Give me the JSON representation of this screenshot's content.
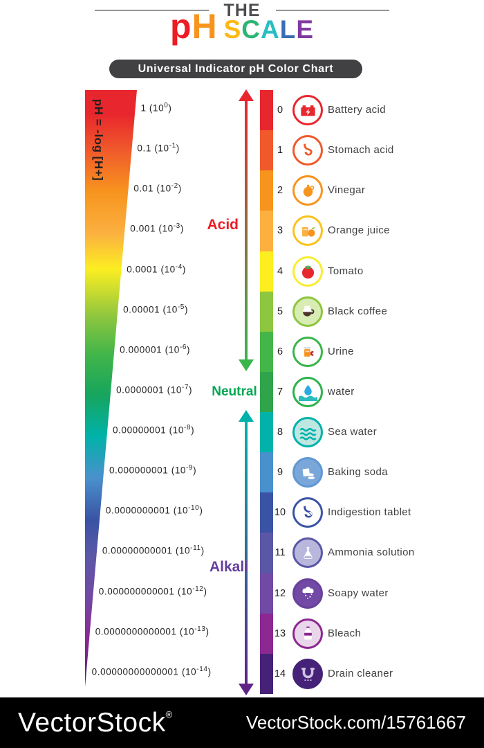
{
  "header": {
    "kicker": "THE",
    "title_letters": [
      {
        "char": "p",
        "color": "#ed1c24",
        "size": "big"
      },
      {
        "char": "H",
        "color": "#f7941d",
        "size": "big"
      },
      {
        "char": "S",
        "color": "#fdb913",
        "size": "small"
      },
      {
        "char": "C",
        "color": "#2bb673",
        "size": "small"
      },
      {
        "char": "A",
        "color": "#2abdc1",
        "size": "small"
      },
      {
        "char": "L",
        "color": "#3a6db4",
        "size": "small"
      },
      {
        "char": "E",
        "color": "#8039a0",
        "size": "small"
      }
    ],
    "banner": "Universal Indicator pH Color Chart"
  },
  "axis": {
    "formula": "pH = -log [H+]"
  },
  "zones": [
    {
      "name": "Acid",
      "color": "#ed1c24",
      "arrow_colors": [
        "#e8262d",
        "#39b54a"
      ]
    },
    {
      "name": "Neutral",
      "color": "#00a651",
      "arrow_colors": []
    },
    {
      "name": "Alkali",
      "color": "#653d9e",
      "arrow_colors": [
        "#00b2a9",
        "#5f2385"
      ]
    }
  ],
  "rows": [
    {
      "ph": 0,
      "color": "#e8262d",
      "concentration": "1",
      "exponent": "0",
      "item": "Battery acid",
      "icon": "battery-icon",
      "ring": "#e8262d",
      "fill": "#ffffff"
    },
    {
      "ph": 1,
      "color": "#f0592b",
      "concentration": "0.1",
      "exponent": "-1",
      "item": "Stomach acid",
      "icon": "stomach-icon",
      "ring": "#f0592b",
      "fill": "#ffffff"
    },
    {
      "ph": 2,
      "color": "#f7941e",
      "concentration": "0.01",
      "exponent": "-2",
      "item": "Vinegar",
      "icon": "vinegar-bottle-icon",
      "ring": "#f7941e",
      "fill": "#ffffff"
    },
    {
      "ph": 3,
      "color": "#fbb040",
      "concentration": "0.001",
      "exponent": "-3",
      "item": "Orange juice",
      "icon": "orange-juice-icon",
      "ring": "#fcc21b",
      "fill": "#ffffff"
    },
    {
      "ph": 4,
      "color": "#fcee21",
      "concentration": "0.0001",
      "exponent": "-4",
      "item": "Tomato",
      "icon": "tomato-icon",
      "ring": "#f9ed32",
      "fill": "#ffffff"
    },
    {
      "ph": 5,
      "color": "#8dc63f",
      "concentration": "0.00001",
      "exponent": "-5",
      "item": "Black coffee",
      "icon": "coffee-pot-icon",
      "ring": "#8dc63f",
      "fill": "#d9ecb4"
    },
    {
      "ph": 6,
      "color": "#44b649",
      "concentration": "0.000001",
      "exponent": "-6",
      "item": "Urine",
      "icon": "urine-sample-icon",
      "ring": "#39b54a",
      "fill": "#ffffff"
    },
    {
      "ph": 7,
      "color": "#2fa44b",
      "concentration": "0.0000001",
      "exponent": "-7",
      "item": "water",
      "icon": "water-drop-icon",
      "ring": "#2bb24c",
      "fill": "#ffffff"
    },
    {
      "ph": 8,
      "color": "#00b2a9",
      "concentration": "0.00000001",
      "exponent": "-8",
      "item": "Sea water",
      "icon": "sea-waves-icon",
      "ring": "#00b2a9",
      "fill": "#bfe7e2"
    },
    {
      "ph": 9,
      "color": "#4a90cd",
      "concentration": "0.000000001",
      "exponent": "-9",
      "item": "Baking soda",
      "icon": "baking-soda-icon",
      "ring": "#5f97d2",
      "fill": "#7aa7d9"
    },
    {
      "ph": 10,
      "color": "#3a53a4",
      "concentration": "0.0000000001",
      "exponent": "-10",
      "item": "Indigestion tablet",
      "icon": "indigestion-tablet-icon",
      "ring": "#3a53a4",
      "fill": "#ffffff"
    },
    {
      "ph": 11,
      "color": "#5b57a7",
      "concentration": "0.00000000001",
      "exponent": "-11",
      "item": "Ammonia solution",
      "icon": "ammonia-flask-icon",
      "ring": "#5b57a7",
      "fill": "#b9b7dc"
    },
    {
      "ph": 12,
      "color": "#7249a5",
      "concentration": "0.000000000001",
      "exponent": "-12",
      "item": "Soapy water",
      "icon": "soapy-water-icon",
      "ring": "#67419b",
      "fill": "#7249a5"
    },
    {
      "ph": 13,
      "color": "#8b2891",
      "concentration": "0.0000000000001",
      "exponent": "-13",
      "item": "Bleach",
      "icon": "bleach-bottle-icon",
      "ring": "#8b2891",
      "fill": "#ead6ea"
    },
    {
      "ph": 14,
      "color": "#452277",
      "concentration": "0.00000000000001",
      "exponent": "-14",
      "item": "Drain cleaner",
      "icon": "drain-cleaner-icon",
      "ring": "#452277",
      "fill": "#452277"
    }
  ],
  "watermark": {
    "brand": "VectorStock",
    "reg": "®",
    "code": "VectorStock.com/15761667"
  }
}
